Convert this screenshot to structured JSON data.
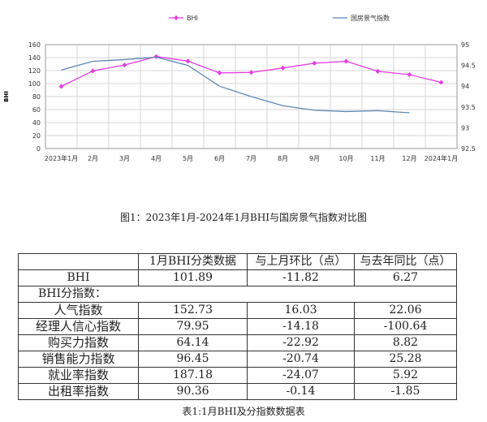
{
  "chart_data": {
    "type": "line",
    "title": "",
    "ylabel": "BHI",
    "ylim": [
      0,
      160
    ],
    "yticks": [
      0,
      20,
      40,
      60,
      80,
      100,
      120,
      140,
      160
    ],
    "y2lim": [
      92.5,
      95
    ],
    "y2ticks": [
      "92.5",
      "93",
      "93.5",
      "94",
      "94.5",
      "95"
    ],
    "categories": [
      "2023年1月",
      "2月",
      "3月",
      "4月",
      "5月",
      "6月",
      "7月",
      "8月",
      "9月",
      "10月",
      "11月",
      "12月",
      "2024年1月"
    ],
    "grid": true,
    "legend": "top",
    "series": [
      {
        "name": "BHI",
        "axis": "left",
        "color": "#e53be5",
        "marker": "diamond",
        "values": [
          95.6,
          119.6,
          128.6,
          141.6,
          134.6,
          116.5,
          117.2,
          124.0,
          131.4,
          134.3,
          118.9,
          113.7,
          101.89
        ]
      },
      {
        "name": "国房景气指数",
        "axis": "right",
        "color": "#5b87b5",
        "values": [
          94.39,
          94.6,
          94.64,
          94.7,
          94.5,
          94.0,
          93.75,
          93.53,
          93.42,
          93.39,
          93.41,
          93.36,
          null
        ]
      }
    ]
  },
  "chart_caption": "图1：2023年1月-2024年1月BHI与国房景气指数对比图",
  "table": {
    "headers": [
      "",
      "1月BHI分类数据",
      "与上月环比（点）",
      "与去年同比（点）"
    ],
    "bhi_row": [
      "BHI",
      "101.89",
      "-11.82",
      "6.27"
    ],
    "section_label": "BHI分指数：",
    "rows": [
      [
        "人气指数",
        "152.73",
        "16.03",
        "22.06"
      ],
      [
        "经理人信心指数",
        "79.95",
        "-14.18",
        "-100.64"
      ],
      [
        "购买力指数",
        "64.14",
        "-22.92",
        "8.82"
      ],
      [
        "销售能力指数",
        "96.45",
        "-20.74",
        "25.28"
      ],
      [
        "就业率指数",
        "187.18",
        "-24.07",
        "5.92"
      ],
      [
        "出租率指数",
        "90.36",
        "-0.14",
        "-1.85"
      ]
    ]
  },
  "table_caption": "表1:1月BHI及分指数数据表"
}
